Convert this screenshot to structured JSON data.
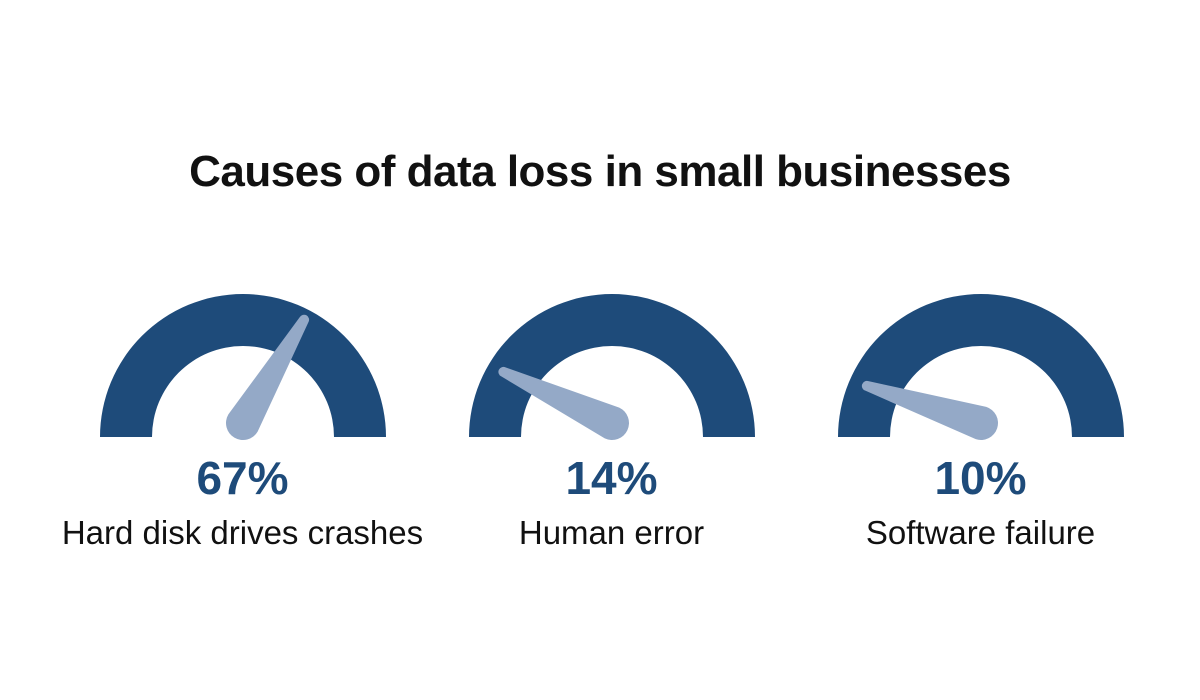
{
  "page": {
    "background": "#ffffff"
  },
  "chart_data": {
    "type": "gauge",
    "title": "Causes of data loss in small businesses",
    "unit": "%",
    "scale_min": 0,
    "scale_max": 100,
    "legend": "none",
    "items": [
      {
        "label": "Hard disk drives crashes",
        "value": 67,
        "display": "67%"
      },
      {
        "label": "Human error",
        "value": 14,
        "display": "14%"
      },
      {
        "label": "Software failure",
        "value": 10,
        "display": "10%"
      }
    ],
    "colors": {
      "background": "#ffffff",
      "arc": "#1e4b7a",
      "needle": "#94a9c7",
      "value_text": "#1e4b7a",
      "label_text": "#111111",
      "title_text": "#111111"
    }
  }
}
